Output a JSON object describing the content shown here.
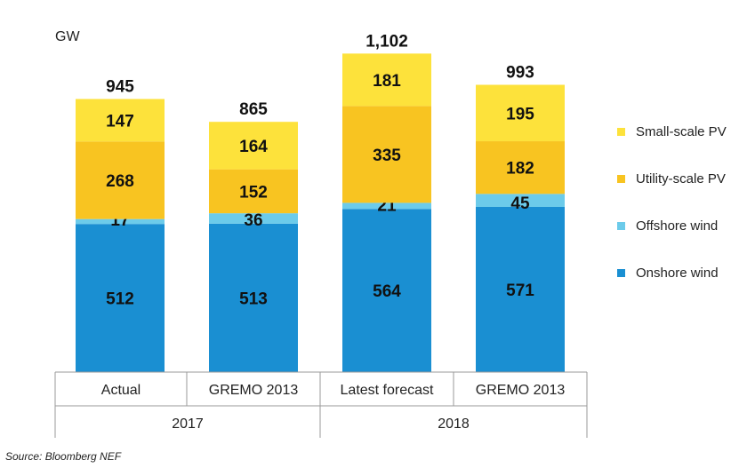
{
  "chart_data": {
    "type": "bar",
    "stacked": true,
    "ylabel": "GW",
    "ylim": [
      0,
      1150
    ],
    "categories": [
      "Actual",
      "GREMO 2013",
      "Latest forecast",
      "GREMO 2013"
    ],
    "groups": [
      {
        "label": "2017",
        "categories": [
          0,
          1
        ]
      },
      {
        "label": "2018",
        "categories": [
          2,
          3
        ]
      }
    ],
    "series": [
      {
        "name": "Onshore wind",
        "color": "#1a8fd2",
        "values": [
          512,
          513,
          564,
          571
        ]
      },
      {
        "name": "Offshore wind",
        "color": "#6ccbea",
        "values": [
          17,
          36,
          21,
          45
        ]
      },
      {
        "name": "Utility-scale PV",
        "color": "#f8c421",
        "values": [
          268,
          152,
          335,
          182
        ]
      },
      {
        "name": "Small-scale PV",
        "color": "#fde23b",
        "values": [
          147,
          164,
          181,
          195
        ]
      }
    ],
    "totals": [
      "945",
      "865",
      "1,102",
      "993"
    ],
    "legend_position": "right",
    "grid": false
  },
  "unit_label": "GW",
  "source": "Source: Bloomberg NEF"
}
